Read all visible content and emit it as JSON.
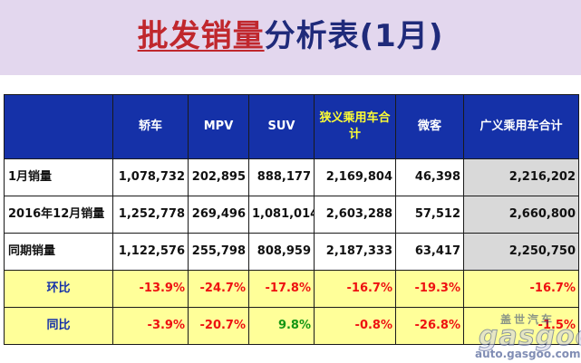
{
  "title": {
    "highlight": "批发销量",
    "rest": "分析表(1月)"
  },
  "table": {
    "headers": [
      "",
      "轿车",
      "MPV",
      "SUV",
      "狭义乘用车合计",
      "微客",
      "广义乘用车合计"
    ],
    "rows": [
      {
        "label": "1月销量",
        "values": [
          "1,078,732",
          "202,895",
          "888,177",
          "2,169,804",
          "46,398",
          "2,216,202"
        ]
      },
      {
        "label": "2016年12月销量",
        "values": [
          "1,252,778",
          "269,496",
          "1,081,014",
          "2,603,288",
          "57,512",
          "2,660,800"
        ]
      },
      {
        "label": "同期销量",
        "values": [
          "1,122,576",
          "255,798",
          "808,959",
          "2,187,333",
          "63,417",
          "2,250,750"
        ]
      },
      {
        "label": "环比",
        "values": [
          "-13.9%",
          "-24.7%",
          "-17.8%",
          "-16.7%",
          "-19.3%",
          "-16.7%"
        ]
      },
      {
        "label": "同比",
        "values": [
          "-3.9%",
          "-20.7%",
          "9.8%",
          "-0.8%",
          "-26.8%",
          "-1.5%"
        ]
      }
    ]
  },
  "watermark": {
    "cn": "盖世汽车",
    "logo": "gasgoo",
    "url": "auto.gasgoo.com"
  },
  "colors": {
    "banner_bg": "#e3d7ee",
    "title_highlight": "#c0272d",
    "title_rest": "#1f2a7a",
    "header_bg": "#1531a8",
    "header_accent_text": "#ffff33",
    "ratio_bg": "#ffff99",
    "negative": "#ee1111",
    "positive": "#149614",
    "total_col_bg": "#d9d9d9"
  }
}
